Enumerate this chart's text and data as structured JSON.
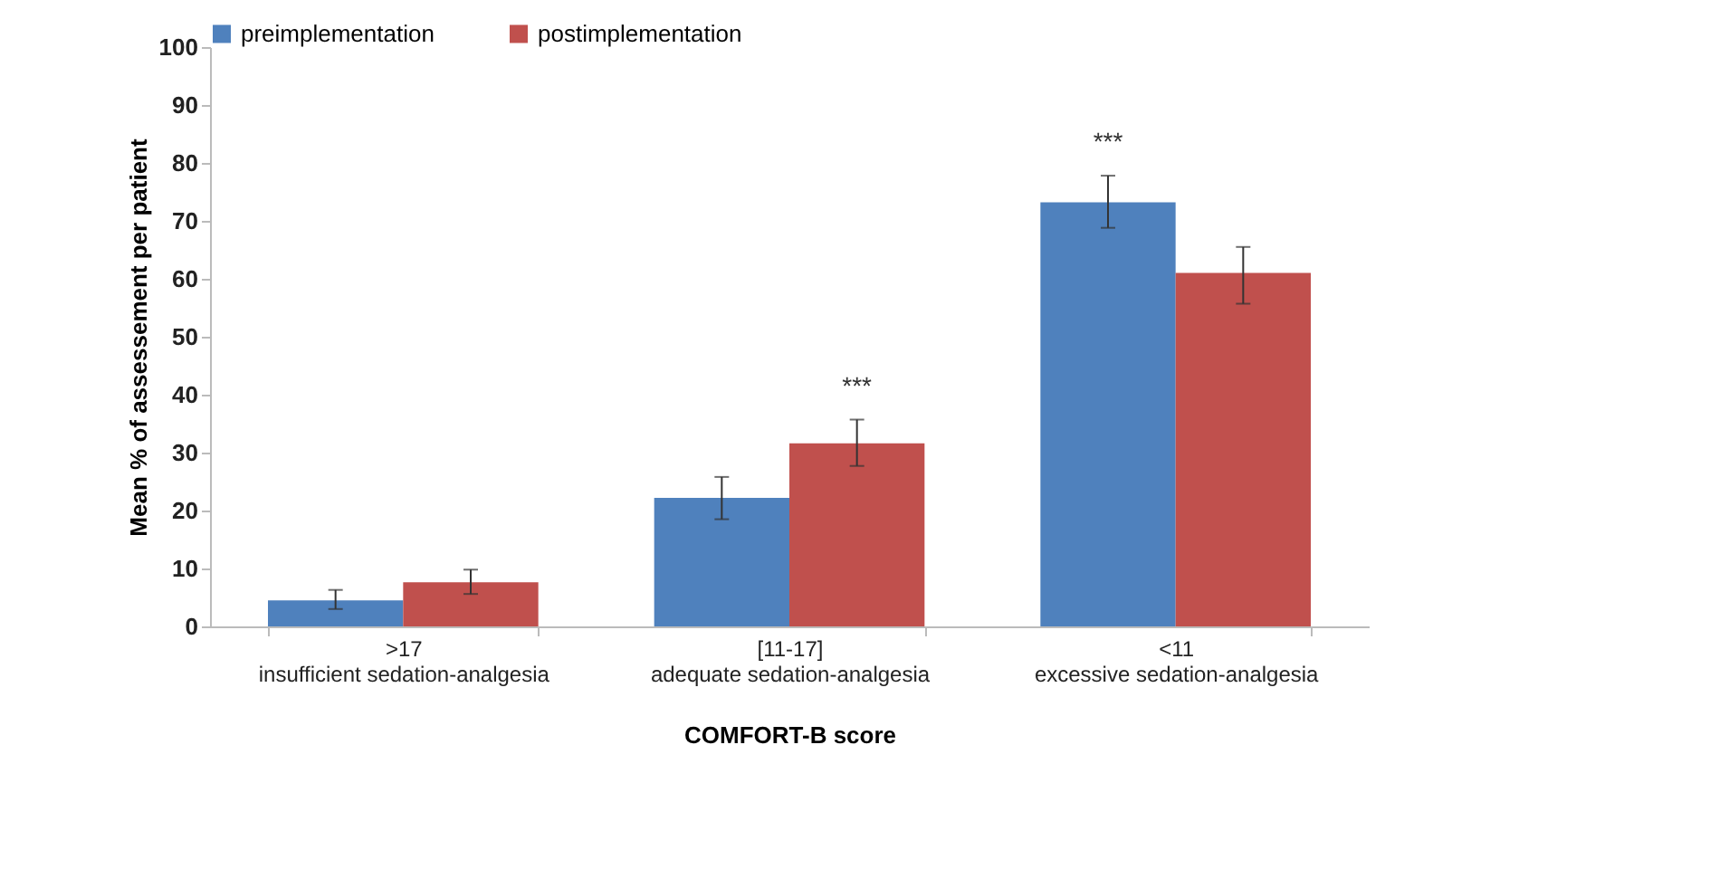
{
  "chart_data": {
    "type": "bar",
    "xlabel": "COMFORT-B score",
    "ylabel": "Mean % of assessement per patient",
    "categories": [
      ">17\ninsufficient sedation-analgesia",
      "[11-17]\nadequate sedation-analgesia",
      "<11\nexcessive sedation-analgesia"
    ],
    "series": [
      {
        "name": "preimplementation",
        "color": "#4f81bd",
        "values": [
          4.5,
          22.2,
          73.2
        ],
        "errors": [
          [
            3,
            6.3
          ],
          [
            18.5,
            25.8
          ],
          [
            68.8,
            77.8
          ]
        ],
        "value_labels": [
          null,
          null,
          "***"
        ]
      },
      {
        "name": "postimplementation",
        "color": "#c0504d",
        "values": [
          7.6,
          31.6,
          61
        ],
        "errors": [
          [
            5.6,
            9.8
          ],
          [
            27.7,
            35.7
          ],
          [
            55.7,
            65.5
          ]
        ],
        "value_labels": [
          null,
          "***",
          null
        ]
      }
    ],
    "ylim": [
      0,
      100
    ],
    "yticks": [
      0,
      10,
      20,
      30,
      40,
      50,
      60,
      70,
      80,
      90,
      100
    ],
    "grid": false,
    "legend": "top"
  }
}
